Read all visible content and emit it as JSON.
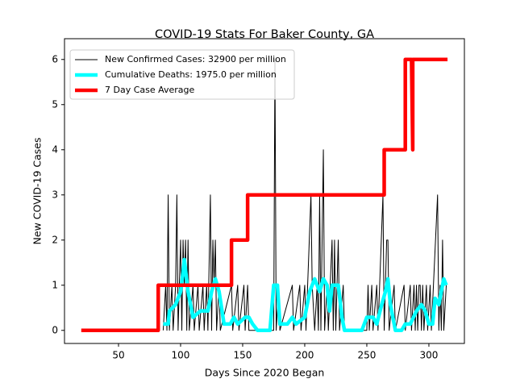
{
  "chart_data": {
    "type": "line",
    "title": "COVID-19 Stats For Baker County, GA",
    "x_label": "Days Since 2020 Began",
    "y_label": "New COVID-19 Cases",
    "xlim": [
      6.5,
      328.6
    ],
    "ylim": [
      -0.29,
      6.46
    ],
    "xticks": [
      50,
      100,
      150,
      200,
      250,
      300
    ],
    "yticks": [
      0,
      1,
      2,
      3,
      4,
      5,
      6
    ],
    "legend": "upper left",
    "series": [
      {
        "name": "New Confirmed Cases: 32900 per million",
        "color": "#000000",
        "x": [
          86,
          88,
          89,
          90,
          91,
          93,
          94,
          96,
          97,
          98,
          100,
          101,
          102,
          103,
          104,
          105,
          106,
          107,
          110,
          111,
          114,
          115,
          118,
          119,
          121,
          122,
          124,
          125,
          126,
          127,
          128,
          129,
          131,
          132,
          141,
          142,
          146,
          147,
          151,
          152,
          154,
          155,
          160,
          175,
          176,
          177,
          179,
          180,
          190,
          191,
          196,
          197,
          200,
          201,
          205,
          206,
          208,
          210,
          211,
          212,
          213,
          215,
          216,
          218,
          219,
          222,
          223,
          224,
          225,
          227,
          228,
          231,
          232,
          250,
          251,
          252,
          254,
          255,
          258,
          259,
          263,
          264,
          266,
          267,
          268,
          272,
          273,
          280,
          281,
          285,
          286,
          288,
          289,
          290,
          291,
          292,
          293,
          294,
          295,
          296,
          298,
          299,
          301,
          302,
          307,
          308,
          309,
          310,
          311,
          312,
          314
        ],
        "values": [
          0,
          1,
          0,
          3,
          0,
          1,
          0,
          1,
          3,
          0,
          2,
          0,
          2,
          1,
          2,
          0,
          2,
          0,
          1,
          0,
          1,
          0,
          1,
          0,
          1,
          0,
          3,
          0,
          2,
          1,
          2,
          0,
          1,
          0,
          1,
          0,
          1,
          0,
          1,
          0,
          1,
          0,
          0,
          0,
          6,
          0,
          1,
          0,
          1,
          0,
          1,
          0,
          1,
          0,
          3,
          1,
          0,
          1,
          0,
          3,
          0,
          4,
          0,
          1,
          0,
          2,
          0,
          2,
          0,
          2,
          0,
          1,
          0,
          0,
          1,
          0,
          1,
          0,
          1,
          0,
          3,
          0,
          2,
          2,
          0,
          1,
          0,
          1,
          0,
          1,
          0,
          1,
          0,
          1,
          0,
          1,
          1,
          0,
          1,
          0,
          1,
          0,
          1,
          0,
          3,
          0,
          1,
          0,
          2,
          0,
          1
        ]
      },
      {
        "name": "Cumulative Deaths: 1975.0 per million",
        "color": "#00ffff",
        "x": [
          86,
          90,
          91,
          96,
          100,
          102,
          103,
          106,
          110,
          116,
          122,
          125,
          128,
          131,
          135,
          140,
          143,
          146,
          152,
          155,
          158,
          162,
          172,
          175,
          178,
          180,
          186,
          190,
          193,
          200,
          204,
          208,
          212,
          215,
          218,
          220,
          222,
          227,
          230,
          232,
          246,
          250,
          255,
          258,
          262,
          265,
          267,
          269,
          273,
          278,
          281,
          285,
          290,
          294,
          297,
          300,
          303,
          305,
          308,
          311,
          312,
          314
        ],
        "values": [
          0.14,
          0.14,
          0.43,
          0.57,
          0.86,
          1.29,
          1.57,
          0.86,
          0.29,
          0.43,
          0.43,
          0.86,
          1.14,
          0.86,
          0.14,
          0.14,
          0.29,
          0.14,
          0.29,
          0.29,
          0.14,
          0,
          0,
          1,
          1,
          0.14,
          0.14,
          0.29,
          0.14,
          0.29,
          0.86,
          1.14,
          0.86,
          1.14,
          1,
          0.43,
          1,
          1,
          0.29,
          0,
          0,
          0.29,
          0.29,
          0.14,
          0.57,
          0.86,
          1.14,
          0.57,
          0,
          0,
          0.14,
          0.14,
          0.43,
          0.57,
          0.43,
          0.14,
          0.14,
          0.71,
          0.57,
          1,
          1.14,
          1
        ]
      },
      {
        "name": "7 Day Case Average",
        "color": "#ff0000",
        "x": [
          20,
          82,
          82,
          141,
          141,
          154,
          154,
          264,
          264,
          281,
          281,
          286,
          287,
          287,
          315
        ],
        "values": [
          0,
          0,
          1,
          1,
          2,
          2,
          3,
          3,
          4,
          4,
          6,
          6,
          4,
          6,
          6
        ]
      }
    ]
  }
}
